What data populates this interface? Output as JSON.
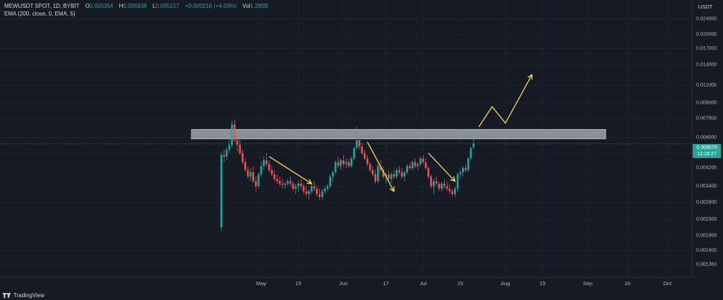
{
  "legend": {
    "symbol": "MEWUSDT SPOT, 1D, BYBIT",
    "open_label": "O",
    "open": "0.005354",
    "high_label": "H",
    "high": "0.005938",
    "low_label": "L",
    "low": "0.005217",
    "change": "+0.000216 (+4.03%)",
    "vol_label": "Vol",
    "vol": "1.295B"
  },
  "indicator": "EMA (200, close, 0, EMA, 5)",
  "unit": "USDT",
  "price_tag": {
    "price": "0.005570",
    "countdown": "12:16:27"
  },
  "brand": "TradingView",
  "colors": {
    "up": "#26a69a",
    "down": "#ef5350",
    "arrow": "#f5e04a",
    "zone": "#b2b5be",
    "background": "#161a25"
  },
  "chart_data": {
    "type": "candlestick",
    "scale": "log",
    "ylim": [
      0.00125,
      0.028
    ],
    "y_ticks": [
      "0.024000",
      "0.020000",
      "0.017000",
      "0.014000",
      "0.011000",
      "0.009000",
      "0.007500",
      "0.006000",
      "0.005000",
      "0.004200",
      "0.003400",
      "0.002800",
      "0.002300",
      "0.001900",
      "0.001600",
      "0.001360"
    ],
    "x_ticks": [
      "May",
      "15",
      "Jun",
      "17",
      "Jul",
      "15",
      "Aug",
      "15",
      "Sep",
      "16",
      "Oct"
    ],
    "resistance_zone": [
      0.0059,
      0.0066
    ],
    "arrows": [
      {
        "from": [
          "2024-05-04",
          0.0048
        ],
        "to": [
          "2024-05-20",
          0.0035
        ]
      },
      {
        "from": [
          "2024-06-10",
          0.0057
        ],
        "to": [
          "2024-06-20",
          0.0032
        ]
      },
      {
        "from": [
          "2024-07-03",
          0.005
        ],
        "to": [
          "2024-07-13",
          0.0036
        ]
      }
    ],
    "projection": [
      [
        "2024-07-22",
        0.0068
      ],
      [
        "2024-07-27",
        0.0086
      ],
      [
        "2024-08-01",
        0.0071
      ],
      [
        "2024-08-11",
        0.0125
      ]
    ],
    "candles": [
      [
        "2024-04-16",
        0.0021,
        0.00505,
        0.002,
        0.0049
      ],
      [
        "2024-04-17",
        0.0049,
        0.0052,
        0.0045,
        0.0048
      ],
      [
        "2024-04-18",
        0.0048,
        0.0054,
        0.0046,
        0.0052
      ],
      [
        "2024-04-19",
        0.0052,
        0.006,
        0.005,
        0.0055
      ],
      [
        "2024-04-20",
        0.0055,
        0.0073,
        0.0053,
        0.007
      ],
      [
        "2024-04-21",
        0.007,
        0.0074,
        0.0057,
        0.0058
      ],
      [
        "2024-04-22",
        0.0058,
        0.0063,
        0.0051,
        0.0055
      ],
      [
        "2024-04-23",
        0.0055,
        0.006,
        0.0049,
        0.005
      ],
      [
        "2024-04-24",
        0.005,
        0.0052,
        0.0044,
        0.0045
      ],
      [
        "2024-04-25",
        0.0045,
        0.0047,
        0.004,
        0.0041
      ],
      [
        "2024-04-26",
        0.0041,
        0.0043,
        0.0037,
        0.0038
      ],
      [
        "2024-04-27",
        0.0038,
        0.0042,
        0.0036,
        0.004
      ],
      [
        "2024-04-28",
        0.004,
        0.0043,
        0.0035,
        0.0036
      ],
      [
        "2024-04-29",
        0.0036,
        0.0038,
        0.0032,
        0.0034
      ],
      [
        "2024-04-30",
        0.0034,
        0.004,
        0.0033,
        0.0039
      ],
      [
        "2024-05-01",
        0.0039,
        0.0045,
        0.0038,
        0.0043
      ],
      [
        "2024-05-02",
        0.0043,
        0.0048,
        0.0041,
        0.0046
      ],
      [
        "2024-05-03",
        0.0046,
        0.005,
        0.0043,
        0.0044
      ],
      [
        "2024-05-04",
        0.0044,
        0.0046,
        0.004,
        0.0041
      ],
      [
        "2024-05-05",
        0.0041,
        0.0043,
        0.0038,
        0.0039
      ],
      [
        "2024-05-06",
        0.0039,
        0.0041,
        0.0036,
        0.0037
      ],
      [
        "2024-05-07",
        0.0037,
        0.0039,
        0.0035,
        0.0036
      ],
      [
        "2024-05-08",
        0.0036,
        0.0038,
        0.0034,
        0.0035
      ],
      [
        "2024-05-09",
        0.0035,
        0.0037,
        0.0033,
        0.00345
      ],
      [
        "2024-05-10",
        0.00345,
        0.0036,
        0.0033,
        0.0035
      ],
      [
        "2024-05-11",
        0.0035,
        0.0037,
        0.0034,
        0.0036
      ],
      [
        "2024-05-12",
        0.0036,
        0.0038,
        0.0034,
        0.0035
      ],
      [
        "2024-05-13",
        0.0035,
        0.0036,
        0.0032,
        0.0033
      ],
      [
        "2024-05-14",
        0.0033,
        0.0035,
        0.0031,
        0.0034
      ],
      [
        "2024-05-15",
        0.0034,
        0.0036,
        0.0032,
        0.0035
      ],
      [
        "2024-05-16",
        0.0035,
        0.0037,
        0.0033,
        0.0034
      ],
      [
        "2024-05-17",
        0.0034,
        0.0035,
        0.0031,
        0.0032
      ],
      [
        "2024-05-18",
        0.0032,
        0.0034,
        0.003,
        0.0031
      ],
      [
        "2024-05-19",
        0.0031,
        0.0033,
        0.0029,
        0.0032
      ],
      [
        "2024-05-20",
        0.0032,
        0.0035,
        0.0031,
        0.0034
      ],
      [
        "2024-05-21",
        0.0034,
        0.0036,
        0.0032,
        0.0033
      ],
      [
        "2024-05-22",
        0.0033,
        0.0034,
        0.003,
        0.0031
      ],
      [
        "2024-05-23",
        0.0031,
        0.0033,
        0.0029,
        0.003
      ],
      [
        "2024-05-24",
        0.003,
        0.0033,
        0.0029,
        0.0032
      ],
      [
        "2024-05-25",
        0.0032,
        0.0034,
        0.0031,
        0.0033
      ],
      [
        "2024-05-26",
        0.0033,
        0.0035,
        0.0032,
        0.0034
      ],
      [
        "2024-05-27",
        0.0034,
        0.0039,
        0.0033,
        0.0038
      ],
      [
        "2024-05-28",
        0.0038,
        0.0041,
        0.0036,
        0.004
      ],
      [
        "2024-05-29",
        0.004,
        0.0046,
        0.0039,
        0.0045
      ],
      [
        "2024-05-30",
        0.0045,
        0.0048,
        0.0042,
        0.0043
      ],
      [
        "2024-05-31",
        0.0043,
        0.0047,
        0.0041,
        0.0046
      ],
      [
        "2024-06-01",
        0.0046,
        0.0049,
        0.0043,
        0.0044
      ],
      [
        "2024-06-02",
        0.0044,
        0.0047,
        0.0042,
        0.0045
      ],
      [
        "2024-06-03",
        0.0045,
        0.0047,
        0.0042,
        0.0043
      ],
      [
        "2024-06-04",
        0.0043,
        0.0048,
        0.0042,
        0.0047
      ],
      [
        "2024-06-05",
        0.0047,
        0.0054,
        0.0046,
        0.0053
      ],
      [
        "2024-06-06",
        0.0053,
        0.0068,
        0.0052,
        0.0058
      ],
      [
        "2024-06-07",
        0.0058,
        0.0061,
        0.0052,
        0.0054
      ],
      [
        "2024-06-08",
        0.0054,
        0.0056,
        0.0049,
        0.005
      ],
      [
        "2024-06-09",
        0.005,
        0.0052,
        0.0046,
        0.0047
      ],
      [
        "2024-06-10",
        0.0047,
        0.0049,
        0.0043,
        0.0044
      ],
      [
        "2024-06-11",
        0.0044,
        0.0045,
        0.004,
        0.0041
      ],
      [
        "2024-06-12",
        0.0041,
        0.0043,
        0.0038,
        0.0039
      ],
      [
        "2024-06-13",
        0.0039,
        0.0041,
        0.0035,
        0.0036
      ],
      [
        "2024-06-14",
        0.0036,
        0.0044,
        0.0035,
        0.0043
      ],
      [
        "2024-06-15",
        0.0043,
        0.0046,
        0.004,
        0.0041
      ],
      [
        "2024-06-16",
        0.0041,
        0.0043,
        0.0037,
        0.0038
      ],
      [
        "2024-06-17",
        0.0038,
        0.004,
        0.0035,
        0.0039
      ],
      [
        "2024-06-18",
        0.0039,
        0.0041,
        0.0036,
        0.0037
      ],
      [
        "2024-06-19",
        0.0037,
        0.004,
        0.0035,
        0.0039
      ],
      [
        "2024-06-20",
        0.0039,
        0.0041,
        0.0037,
        0.0038
      ],
      [
        "2024-06-21",
        0.0038,
        0.0042,
        0.0037,
        0.0041
      ],
      [
        "2024-06-22",
        0.0041,
        0.0043,
        0.0039,
        0.004
      ],
      [
        "2024-06-23",
        0.004,
        0.0042,
        0.0037,
        0.0038
      ],
      [
        "2024-06-24",
        0.0038,
        0.0041,
        0.0036,
        0.004
      ],
      [
        "2024-06-25",
        0.004,
        0.0044,
        0.0039,
        0.0043
      ],
      [
        "2024-06-26",
        0.0043,
        0.0045,
        0.0041,
        0.0042
      ],
      [
        "2024-06-27",
        0.0042,
        0.0046,
        0.0041,
        0.0045
      ],
      [
        "2024-06-28",
        0.0045,
        0.0047,
        0.0042,
        0.0043
      ],
      [
        "2024-06-29",
        0.0043,
        0.0045,
        0.0041,
        0.0044
      ],
      [
        "2024-06-30",
        0.0044,
        0.0048,
        0.0043,
        0.0047
      ],
      [
        "2024-07-01",
        0.0047,
        0.0049,
        0.0044,
        0.0045
      ],
      [
        "2024-07-02",
        0.0045,
        0.0047,
        0.0041,
        0.0042
      ],
      [
        "2024-07-03",
        0.0042,
        0.0043,
        0.0037,
        0.0038
      ],
      [
        "2024-07-04",
        0.0038,
        0.0039,
        0.0033,
        0.0034
      ],
      [
        "2024-07-05",
        0.0034,
        0.0037,
        0.0031,
        0.0036
      ],
      [
        "2024-07-06",
        0.0036,
        0.0038,
        0.0034,
        0.0035
      ],
      [
        "2024-07-07",
        0.0035,
        0.0036,
        0.0032,
        0.0033
      ],
      [
        "2024-07-08",
        0.0033,
        0.0036,
        0.0032,
        0.0035
      ],
      [
        "2024-07-09",
        0.0035,
        0.0037,
        0.0033,
        0.0034
      ],
      [
        "2024-07-10",
        0.0034,
        0.0036,
        0.0032,
        0.0033
      ],
      [
        "2024-07-11",
        0.0033,
        0.0035,
        0.0031,
        0.0032
      ],
      [
        "2024-07-12",
        0.0032,
        0.0033,
        0.003,
        0.0031
      ],
      [
        "2024-07-13",
        0.0031,
        0.0034,
        0.003,
        0.0033
      ],
      [
        "2024-07-14",
        0.0033,
        0.004,
        0.0032,
        0.0039
      ],
      [
        "2024-07-15",
        0.0039,
        0.0041,
        0.0037,
        0.004
      ],
      [
        "2024-07-16",
        0.004,
        0.0043,
        0.0038,
        0.0042
      ],
      [
        "2024-07-17",
        0.0042,
        0.0044,
        0.004,
        0.0041
      ],
      [
        "2024-07-18",
        0.0041,
        0.0048,
        0.004,
        0.0047
      ],
      [
        "2024-07-19",
        0.0047,
        0.0054,
        0.0046,
        0.0053
      ],
      [
        "2024-07-20",
        0.005354,
        0.005938,
        0.005217,
        0.00557
      ]
    ]
  }
}
